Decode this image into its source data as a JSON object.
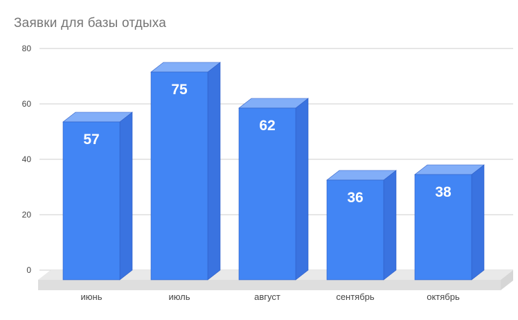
{
  "chart_data": {
    "type": "bar",
    "style": "3d-column",
    "title": "Заявки для базы отдыха",
    "categories": [
      "июнь",
      "июль",
      "август",
      "сентябрь",
      "октябрь"
    ],
    "values": [
      57,
      75,
      62,
      36,
      38
    ],
    "xlabel": "",
    "ylabel": "",
    "ylim": [
      0,
      80
    ],
    "yticks": [
      0,
      20,
      40,
      60,
      80
    ],
    "grid": true,
    "legend": "none",
    "colors": {
      "bar_front": "#4285f4",
      "bar_top": "#82aef8",
      "bar_side": "#3a73e0",
      "bar_edge": "#2f5fc7",
      "floor_top": "#e9e9e9",
      "floor_front": "#dedede",
      "floor_side": "#d6d6d6",
      "gridline": "#cccccc",
      "title": "#757575",
      "axis_label": "#444444",
      "data_label": "#ffffff",
      "background": "#ffffff"
    }
  }
}
